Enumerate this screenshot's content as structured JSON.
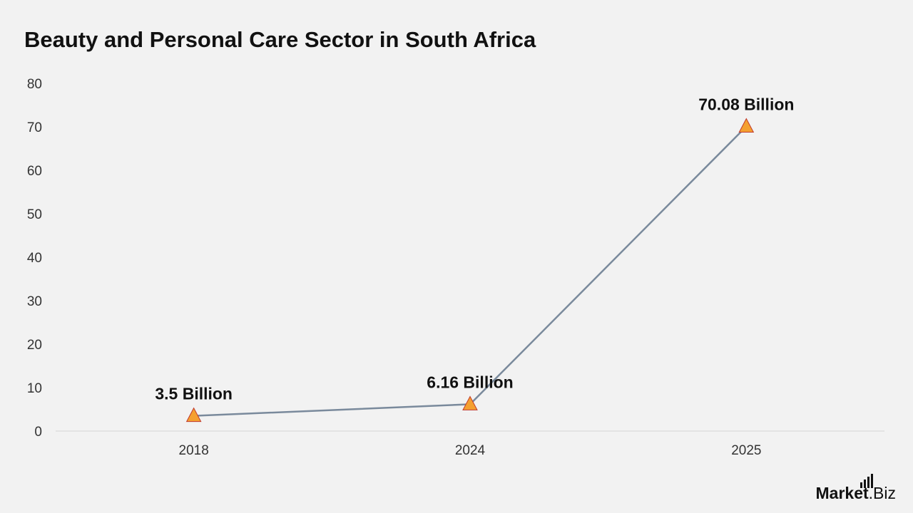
{
  "chart_data": {
    "type": "line",
    "title": "Beauty and Personal Care Sector in South Africa",
    "xlabel": "",
    "ylabel": "",
    "categories": [
      "2018",
      "2024",
      "2025"
    ],
    "series": [
      {
        "values": [
          3.5,
          6.16,
          70.08
        ],
        "data_labels": [
          "3.5 Billion",
          "6.16 Billion",
          "70.08 Billion"
        ]
      }
    ],
    "ylim": [
      0,
      80
    ],
    "yticks": [
      "0",
      "10",
      "20",
      "30",
      "40",
      "50",
      "60",
      "70",
      "80"
    ],
    "grid": false,
    "legend": "none",
    "line_color": "#7a8a9c",
    "marker": "triangle",
    "marker_fill": "#f4a030",
    "marker_stroke": "#c0392b"
  },
  "logo": {
    "market": "Market",
    "biz": ".Biz",
    "logo_text": "Market.Biz"
  }
}
